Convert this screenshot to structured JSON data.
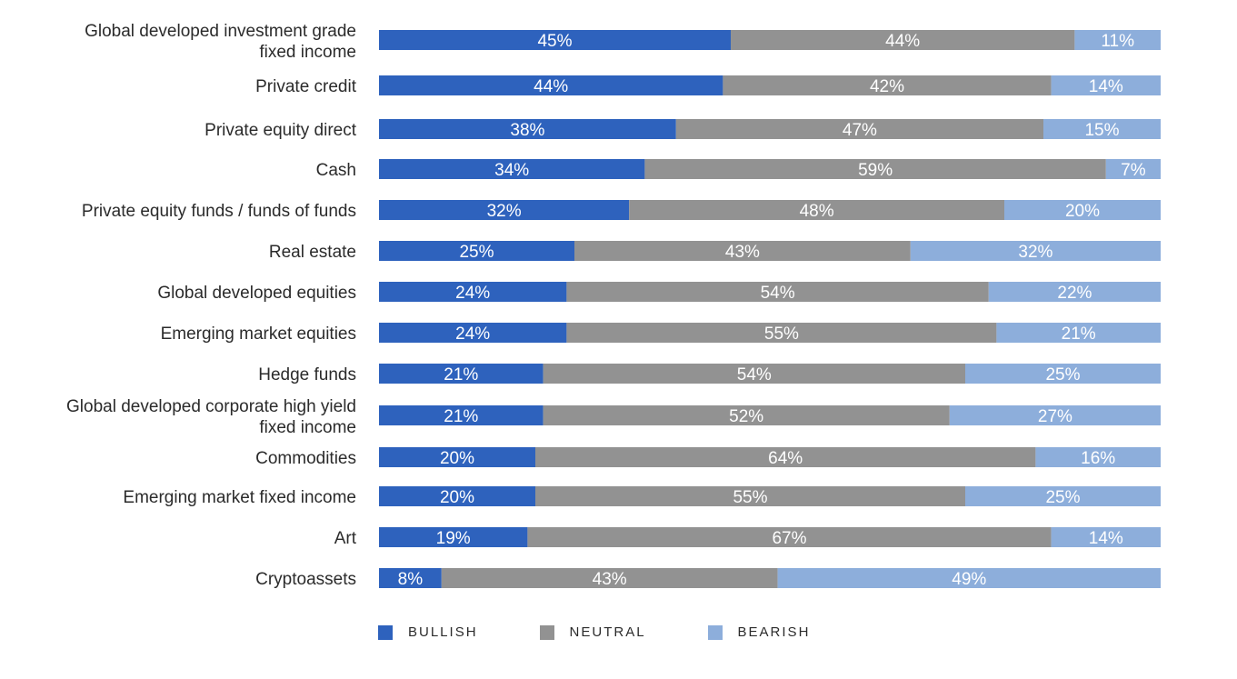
{
  "chart_data": {
    "type": "bar",
    "orientation": "horizontal",
    "stacked": true,
    "categories": [
      [
        "Global developed investment grade",
        "fixed income"
      ],
      [
        "Private credit"
      ],
      [
        "Private equity direct"
      ],
      [
        "Cash"
      ],
      [
        "Private equity funds / funds of funds"
      ],
      [
        "Real estate"
      ],
      [
        "Global developed equities"
      ],
      [
        "Emerging market equities"
      ],
      [
        "Hedge funds"
      ],
      [
        "Global developed corporate high yield",
        "fixed income"
      ],
      [
        "Commodities"
      ],
      [
        "Emerging market fixed income"
      ],
      [
        "Art"
      ],
      [
        "Cryptoassets"
      ]
    ],
    "series": [
      {
        "name": "BULLISH",
        "color": "#2e62bd",
        "values": [
          45,
          44,
          38,
          34,
          32,
          25,
          24,
          24,
          21,
          21,
          20,
          20,
          19,
          8
        ]
      },
      {
        "name": "NEUTRAL",
        "color": "#929292",
        "values": [
          44,
          42,
          47,
          59,
          48,
          43,
          54,
          55,
          54,
          52,
          64,
          55,
          67,
          43
        ]
      },
      {
        "name": "BEARISH",
        "color": "#8daedb",
        "values": [
          11,
          14,
          15,
          7,
          20,
          32,
          22,
          21,
          25,
          27,
          16,
          25,
          14,
          49
        ]
      }
    ],
    "value_suffix": "%",
    "legend_position": "bottom-left",
    "grid": false
  }
}
